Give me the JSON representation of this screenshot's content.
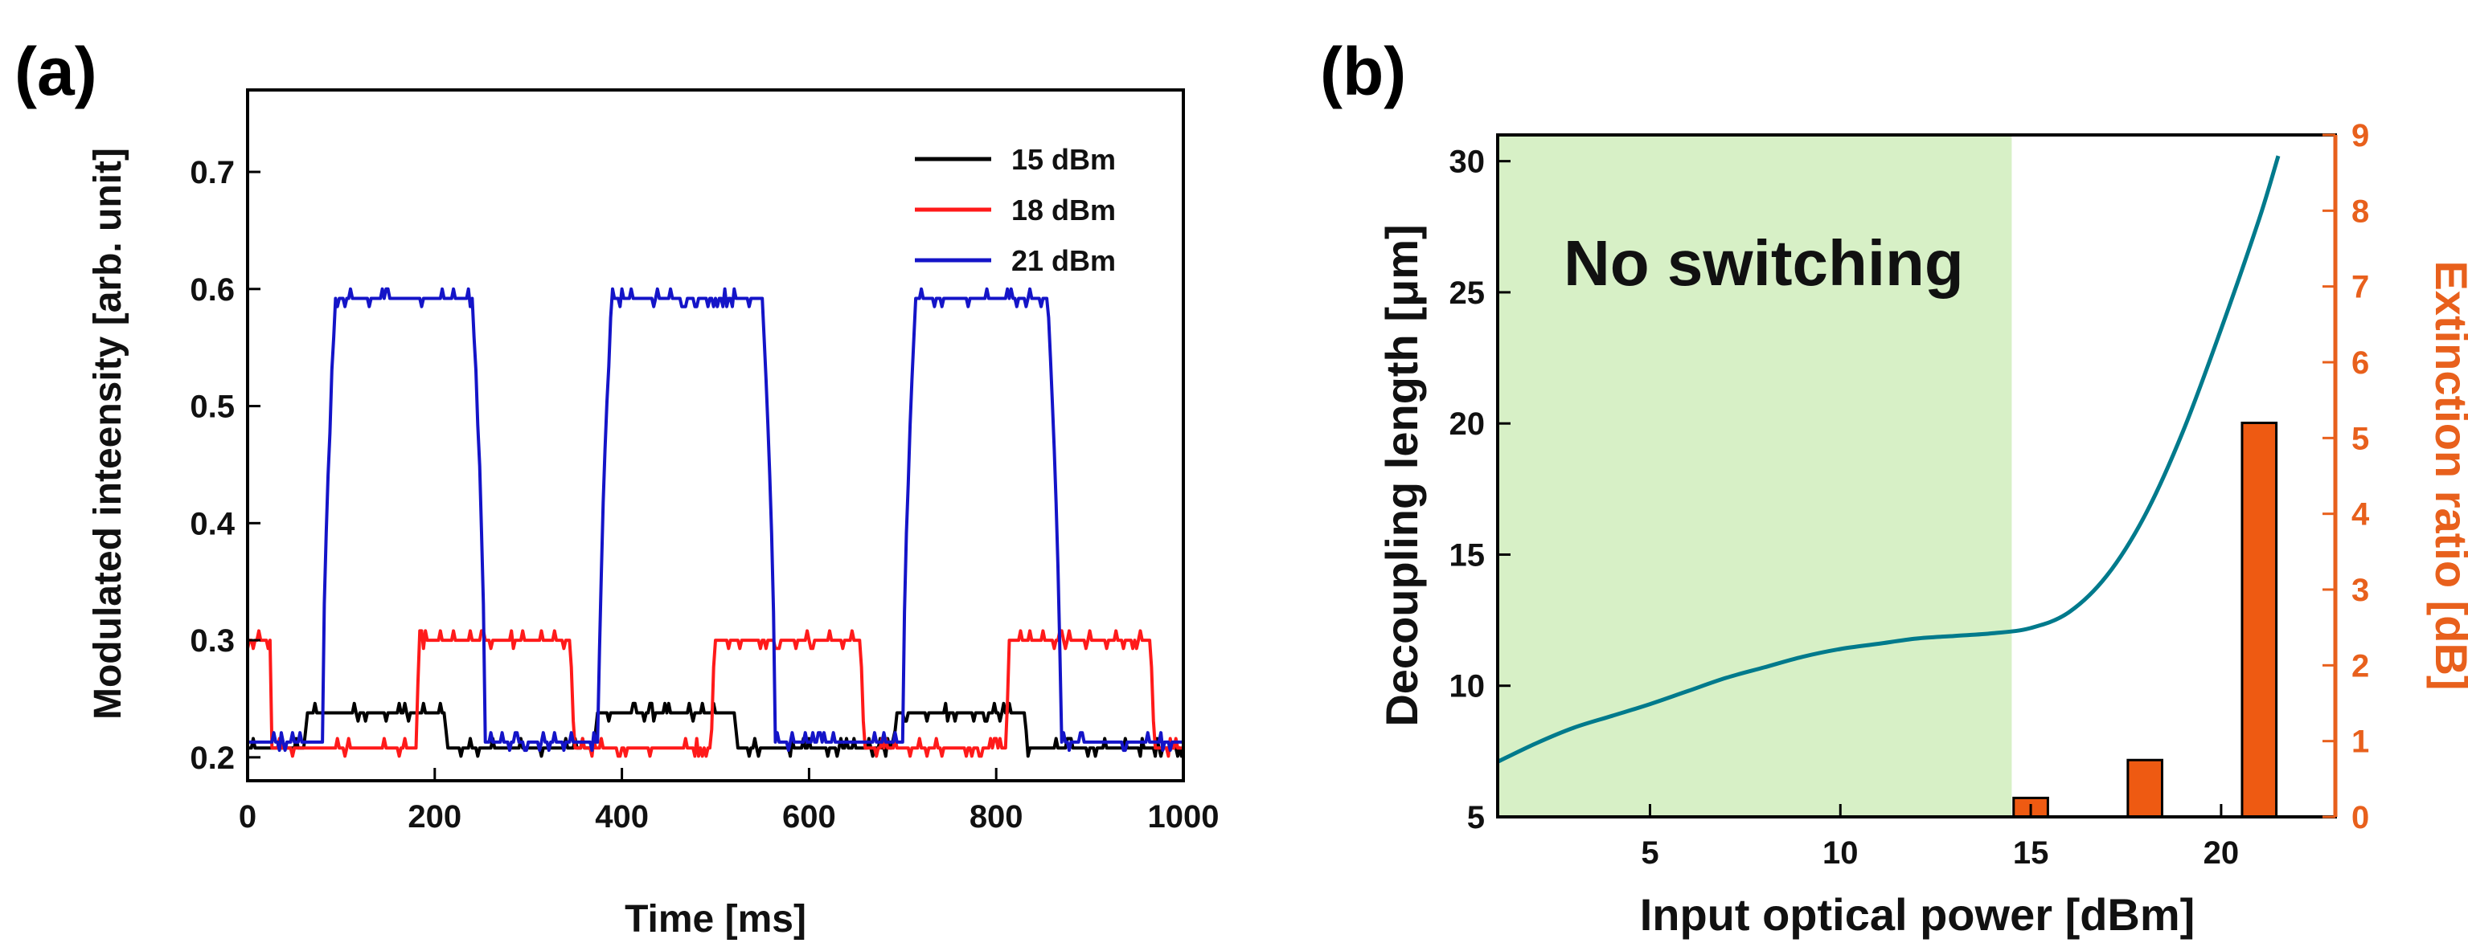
{
  "panels": {
    "a_label": "(a)",
    "b_label": "(b)"
  },
  "chart_data": [
    {
      "type": "line",
      "panel": "(a)",
      "title": "",
      "xlabel": "Time [ms]",
      "ylabel": "Modulated inteensity [arb. unit]",
      "xlim": [
        0,
        1000
      ],
      "ylim": [
        0.18,
        0.77
      ],
      "xticks": [
        0,
        200,
        400,
        600,
        800,
        1000
      ],
      "yticks": [
        0.2,
        0.3,
        0.4,
        0.5,
        0.6,
        0.7
      ],
      "legend_position": "top-right",
      "series": [
        {
          "name": "15 dBm",
          "color": "#000000",
          "low": 0.208,
          "high": 0.238,
          "transitions": [
            [
              60,
              210
            ],
            [
              370,
              520
            ],
            [
              690,
              830
            ]
          ]
        },
        {
          "name": "18 dBm",
          "color": "#ff1a1a",
          "low": 0.208,
          "high": 0.3,
          "initial_high_until": 25,
          "transitions": [
            [
              180,
              345
            ],
            [
              495,
              655
            ],
            [
              810,
              965
            ]
          ]
        },
        {
          "name": "21 dBm",
          "color": "#1414c8",
          "low": 0.213,
          "high": 0.592,
          "transitions": [
            [
              80,
              240
            ],
            [
              375,
              550
            ],
            [
              700,
              855
            ]
          ]
        }
      ]
    },
    {
      "type": "line+bar",
      "panel": "(b)",
      "title": "",
      "xlabel": "Input optical power [dBm]",
      "ylabel": "Decoupling length [μm]",
      "ylabel_right": "Extinction ratio [dB]",
      "xlim": [
        1,
        23
      ],
      "ylim": [
        5,
        31
      ],
      "ylim_right": [
        0,
        9
      ],
      "xticks": [
        5,
        10,
        15,
        20
      ],
      "yticks": [
        5,
        10,
        15,
        20,
        25,
        30
      ],
      "yticks_right": [
        0,
        1,
        2,
        3,
        4,
        5,
        6,
        7,
        8,
        9
      ],
      "shaded_region": {
        "label": "No switching",
        "x_range": [
          1,
          14.5
        ],
        "color": "#d7f0c6"
      },
      "line_series": {
        "color": "#007a8c",
        "x": [
          1,
          2,
          3,
          4,
          5,
          6,
          7,
          8,
          9,
          10,
          11,
          12,
          13,
          14,
          15,
          16,
          17,
          18,
          19,
          20,
          21,
          21.5
        ],
        "y": [
          7.1,
          7.8,
          8.4,
          8.85,
          9.3,
          9.8,
          10.3,
          10.7,
          11.1,
          11.4,
          11.6,
          11.8,
          11.9,
          12.0,
          12.2,
          12.8,
          14.2,
          16.5,
          19.7,
          23.6,
          27.8,
          30.2
        ]
      },
      "bar_series": {
        "color": "#ee5a12",
        "x": [
          15,
          18,
          21
        ],
        "values": [
          0.25,
          0.75,
          5.2
        ],
        "width": 0.9
      }
    }
  ]
}
